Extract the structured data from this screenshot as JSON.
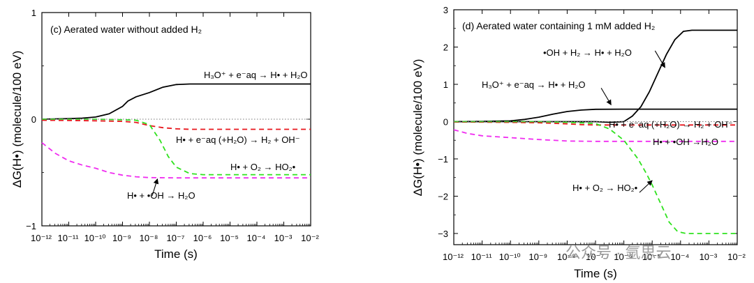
{
  "chart_data": [
    {
      "panel": "c",
      "type": "line",
      "title": "(c) Aerated water without added H₂",
      "xlabel": "Time (s)",
      "ylabel": "ΔG(H•) (molecule/100 eV)",
      "xscale": "log",
      "xlim_exp": [
        -12,
        -2
      ],
      "ylim": [
        -1,
        1
      ],
      "ytick_labels": [
        "1",
        "0",
        "−1"
      ],
      "yticks": [
        1,
        0,
        -1
      ],
      "series": [
        {
          "name": "H₃O⁺ + e⁻aq → H• + H₂O",
          "color": "#000000",
          "dash": "solid",
          "points": [
            [
              -12,
              0
            ],
            [
              -11,
              0.005
            ],
            [
              -10.5,
              0.01
            ],
            [
              -10,
              0.02
            ],
            [
              -9.5,
              0.05
            ],
            [
              -9,
              0.12
            ],
            [
              -8.8,
              0.17
            ],
            [
              -8.5,
              0.21
            ],
            [
              -8,
              0.25
            ],
            [
              -7.5,
              0.3
            ],
            [
              -7,
              0.325
            ],
            [
              -6.5,
              0.33
            ],
            [
              -2,
              0.33
            ]
          ]
        },
        {
          "name": "H• + e⁻aq (+H₂O) → H₂ + OH⁻",
          "color": "#e8151b",
          "dash": "dashed",
          "points": [
            [
              -12,
              -0.01
            ],
            [
              -11,
              -0.012
            ],
            [
              -10,
              -0.015
            ],
            [
              -9,
              -0.02
            ],
            [
              -8.5,
              -0.03
            ],
            [
              -8,
              -0.06
            ],
            [
              -7.5,
              -0.08
            ],
            [
              -7,
              -0.09
            ],
            [
              -6.5,
              -0.095
            ],
            [
              -2,
              -0.095
            ]
          ]
        },
        {
          "name": "H• + O₂ → HO₂•",
          "color": "#2fe21e",
          "dash": "dashed",
          "points": [
            [
              -12,
              0
            ],
            [
              -10,
              0
            ],
            [
              -9,
              -0.005
            ],
            [
              -8.5,
              -0.01
            ],
            [
              -8,
              -0.05
            ],
            [
              -7.6,
              -0.2
            ],
            [
              -7.3,
              -0.35
            ],
            [
              -7,
              -0.45
            ],
            [
              -6.5,
              -0.51
            ],
            [
              -6,
              -0.52
            ],
            [
              -2,
              -0.52
            ]
          ]
        },
        {
          "name": "H• + •OH → H₂O",
          "color": "#f02cf0",
          "dash": "dashed",
          "points": [
            [
              -12,
              -0.22
            ],
            [
              -11.5,
              -0.32
            ],
            [
              -11,
              -0.39
            ],
            [
              -10.5,
              -0.43
            ],
            [
              -10,
              -0.46
            ],
            [
              -9.5,
              -0.5
            ],
            [
              -9,
              -0.525
            ],
            [
              -8.5,
              -0.54
            ],
            [
              -8,
              -0.548
            ],
            [
              -7,
              -0.55
            ],
            [
              -2,
              -0.55
            ]
          ]
        },
        {
          "name": "zero",
          "color": "#777777",
          "dash": "dotted",
          "points": [
            [
              -12,
              0
            ],
            [
              -2,
              0
            ]
          ]
        }
      ],
      "annotations": {
        "h3o_label": "H₃O⁺ + e⁻aq → H• + H₂O",
        "eaq_label": "H• + e⁻aq (+H₂O) → H₂ + OH⁻",
        "o2_label": "H• + O₂ → HO₂•",
        "oh_label": "H• + •OH → H₂O"
      },
      "arrow": {
        "from": [
          -7.9,
          -0.72
        ],
        "to": [
          -7.7,
          -0.56
        ]
      }
    },
    {
      "panel": "d",
      "type": "line",
      "title": "(d) Aerated water containing 1 mM added H₂",
      "xlabel": "Time (s)",
      "ylabel": "ΔG(H•) (molecule/100 eV)",
      "xscale": "log",
      "xlim_exp": [
        -12,
        -2
      ],
      "ylim": [
        -3.3,
        3.0
      ],
      "ytick_labels": [
        "3",
        "2",
        "1",
        "0",
        "−1",
        "−2",
        "−3"
      ],
      "yticks": [
        3,
        2,
        1,
        0,
        -1,
        -2,
        -3
      ],
      "series": [
        {
          "name": "•OH + H₂ → H• + H₂O",
          "color": "#000000",
          "dash": "solid",
          "points": [
            [
              -12,
              0
            ],
            [
              -7,
              0
            ],
            [
              -6.5,
              -0.02
            ],
            [
              -6,
              0
            ],
            [
              -5.7,
              0.15
            ],
            [
              -5.4,
              0.4
            ],
            [
              -5.1,
              0.8
            ],
            [
              -4.8,
              1.3
            ],
            [
              -4.5,
              1.8
            ],
            [
              -4.2,
              2.2
            ],
            [
              -3.9,
              2.42
            ],
            [
              -3.6,
              2.45
            ],
            [
              -2,
              2.45
            ]
          ]
        },
        {
          "name": "H₃O⁺ + e⁻aq → H• + H₂O",
          "color": "#000000",
          "dash": "solid",
          "points": [
            [
              -12,
              0
            ],
            [
              -11,
              0.005
            ],
            [
              -10,
              0.02
            ],
            [
              -9.5,
              0.06
            ],
            [
              -9,
              0.12
            ],
            [
              -8.5,
              0.2
            ],
            [
              -8,
              0.27
            ],
            [
              -7.5,
              0.31
            ],
            [
              -7,
              0.33
            ],
            [
              -6,
              0.335
            ],
            [
              -2,
              0.335
            ]
          ]
        },
        {
          "name": "H• + e⁻aq (+H₂O) → H₂ + OH⁻",
          "color": "#e8151b",
          "dash": "dashed",
          "points": [
            [
              -12,
              -0.01
            ],
            [
              -10,
              -0.02
            ],
            [
              -9,
              -0.03
            ],
            [
              -8,
              -0.06
            ],
            [
              -7.5,
              -0.08
            ],
            [
              -7,
              -0.09
            ],
            [
              -2,
              -0.09
            ]
          ]
        },
        {
          "name": "H• + •OH → H₂O",
          "color": "#f02cf0",
          "dash": "dashed",
          "points": [
            [
              -12,
              -0.22
            ],
            [
              -11.5,
              -0.32
            ],
            [
              -11,
              -0.38
            ],
            [
              -10,
              -0.43
            ],
            [
              -9,
              -0.48
            ],
            [
              -8,
              -0.52
            ],
            [
              -7,
              -0.53
            ],
            [
              -2,
              -0.53
            ]
          ]
        },
        {
          "name": "H• + O₂ → HO₂•",
          "color": "#2fe21e",
          "dash": "dashed",
          "points": [
            [
              -12,
              0
            ],
            [
              -9,
              0
            ],
            [
              -8,
              -0.02
            ],
            [
              -7,
              -0.05
            ],
            [
              -6.5,
              -0.2
            ],
            [
              -6,
              -0.5
            ],
            [
              -5.5,
              -1.0
            ],
            [
              -5.2,
              -1.4
            ],
            [
              -5,
              -1.7
            ],
            [
              -4.7,
              -2.2
            ],
            [
              -4.4,
              -2.7
            ],
            [
              -4.1,
              -2.95
            ],
            [
              -3.8,
              -3.0
            ],
            [
              -2,
              -3.0
            ]
          ]
        },
        {
          "name": "zero",
          "color": "#777777",
          "dash": "dotted",
          "points": [
            [
              -12,
              0
            ],
            [
              -2,
              0
            ]
          ]
        }
      ],
      "annotations": {
        "ohh2_label": "•OH + H₂ → H• + H₂O",
        "h3o_label": "H₃O⁺ + e⁻aq → H• + H₂O",
        "eaq_label": "H• + e⁻aq (+H₂O) → H₂ + OH⁻",
        "oh_label": "H• + •OH →H₂O",
        "o2_label": "H• + O₂ → HO₂•"
      },
      "arrows": [
        {
          "from": [
            -4.9,
            1.9
          ],
          "to": [
            -4.55,
            1.45
          ]
        },
        {
          "from": [
            -6.8,
            0.9
          ],
          "to": [
            -6.45,
            0.45
          ]
        },
        {
          "from": [
            -5.45,
            -1.9
          ],
          "to": [
            -5.0,
            -1.58
          ]
        }
      ]
    }
  ],
  "watermark": "公众号 · 氩思云"
}
